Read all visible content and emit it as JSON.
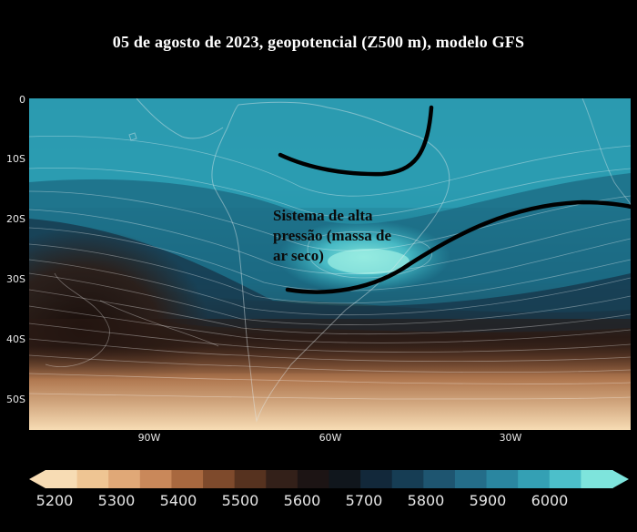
{
  "title": "05 de agosto de 2023,  geopotencial (Z500 m), modelo GFS",
  "annotation": {
    "line1": "Sistema de alta",
    "line2": "pressão (massa de",
    "line3": "ar seco)"
  },
  "axes": {
    "lat": [
      {
        "value": 0,
        "label": "0"
      },
      {
        "value": -10,
        "label": "10S"
      },
      {
        "value": -20,
        "label": "20S"
      },
      {
        "value": -30,
        "label": "30S"
      },
      {
        "value": -40,
        "label": "40S"
      },
      {
        "value": -50,
        "label": "50S"
      }
    ],
    "lon": [
      {
        "value": -90,
        "label": "90W"
      },
      {
        "value": -60,
        "label": "60W"
      },
      {
        "value": -30,
        "label": "30W"
      }
    ]
  },
  "colorbar": {
    "unit": "m",
    "ticks": [
      {
        "value": 5200,
        "label": "5200"
      },
      {
        "value": 5300,
        "label": "5300"
      },
      {
        "value": 5400,
        "label": "5400"
      },
      {
        "value": 5500,
        "label": "5500"
      },
      {
        "value": 5600,
        "label": "5600"
      },
      {
        "value": 5700,
        "label": "5700"
      },
      {
        "value": 5800,
        "label": "5800"
      },
      {
        "value": 5900,
        "label": "5900"
      },
      {
        "value": 6000,
        "label": "6000"
      }
    ],
    "colors": [
      "#f7dcb4",
      "#efc593",
      "#e0a877",
      "#c9885a",
      "#a8683f",
      "#7e4a2c",
      "#56321f",
      "#332019",
      "#1c1414",
      "#10161c",
      "#12283a",
      "#163d54",
      "#1e5570",
      "#246d89",
      "#2a86a0",
      "#34a0b4",
      "#4cbfca",
      "#7ee4dc"
    ]
  },
  "colors": {
    "background": "#000000",
    "high_pressure": "#2fa3b4",
    "low_heights": "#2a1a14",
    "trough_lines": "#000000"
  }
}
